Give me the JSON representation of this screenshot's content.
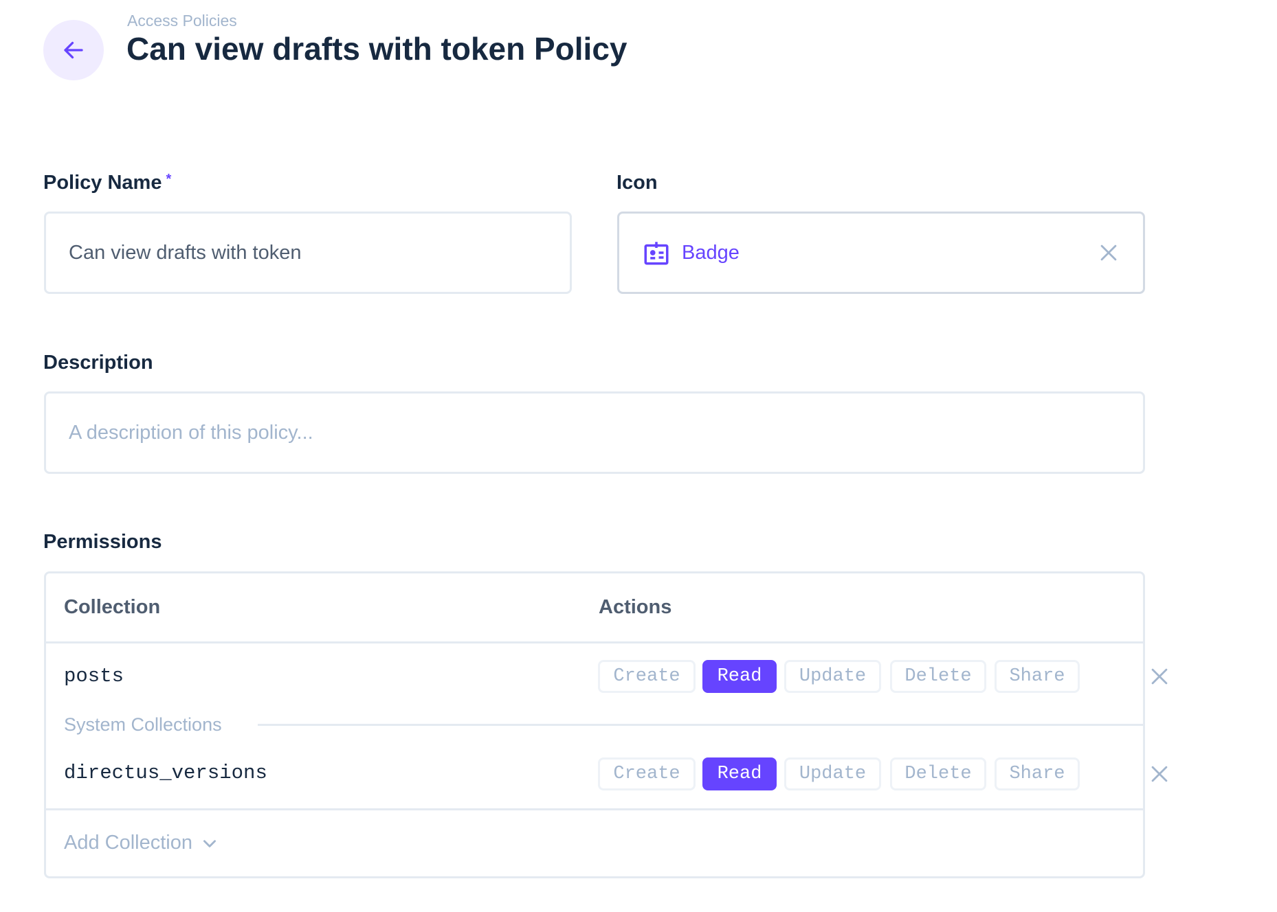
{
  "header": {
    "breadcrumb": "Access Policies",
    "title": "Can view drafts with token Policy",
    "back_icon": "arrow-left-icon"
  },
  "form": {
    "policy_name": {
      "label": "Policy Name",
      "required_mark": "*",
      "value": "Can view drafts with token"
    },
    "icon": {
      "label": "Icon",
      "value": "Badge",
      "icon": "badge-icon"
    },
    "description": {
      "label": "Description",
      "placeholder": "A description of this policy..."
    }
  },
  "permissions": {
    "label": "Permissions",
    "columns": [
      "Collection",
      "Actions"
    ],
    "rows": [
      {
        "collection": "posts",
        "actions": [
          {
            "label": "Create",
            "active": false
          },
          {
            "label": "Read",
            "active": true
          },
          {
            "label": "Update",
            "active": false
          },
          {
            "label": "Delete",
            "active": false
          },
          {
            "label": "Share",
            "active": false
          }
        ]
      },
      {
        "collection": "directus_versions",
        "actions": [
          {
            "label": "Create",
            "active": false
          },
          {
            "label": "Read",
            "active": true
          },
          {
            "label": "Update",
            "active": false
          },
          {
            "label": "Delete",
            "active": false
          },
          {
            "label": "Share",
            "active": false
          }
        ]
      }
    ],
    "system_group_label": "System Collections",
    "add_collection": "Add Collection"
  },
  "colors": {
    "accent": "#6644ff",
    "text": "#172940",
    "muted": "#a2b5cd",
    "border": "#e4eaf1"
  }
}
